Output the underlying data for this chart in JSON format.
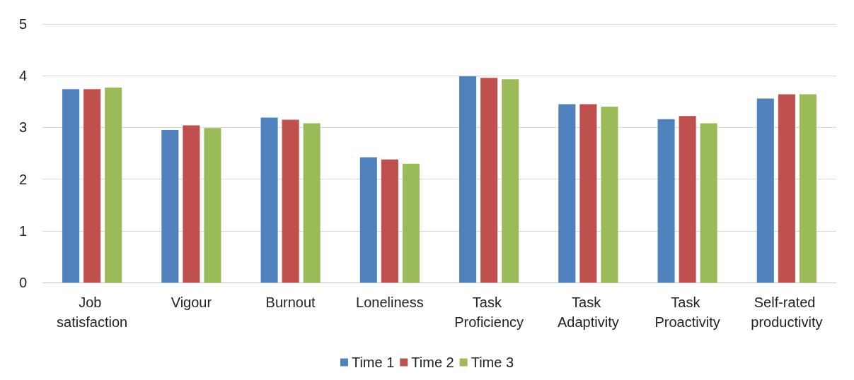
{
  "chart_data": {
    "type": "bar",
    "categories": [
      "Job satisfaction",
      "Vigour",
      "Burnout",
      "Loneliness",
      "Task Proficiency",
      "Task Adaptivity",
      "Task Proactivity",
      "Self-rated productivity"
    ],
    "series": [
      {
        "name": "Time 1",
        "color": "#4f81bd",
        "values": [
          3.74,
          2.95,
          3.19,
          2.42,
          3.99,
          3.45,
          3.16,
          3.56
        ]
      },
      {
        "name": "Time 2",
        "color": "#c0504d",
        "values": [
          3.74,
          3.04,
          3.15,
          2.38,
          3.96,
          3.45,
          3.22,
          3.64
        ]
      },
      {
        "name": "Time 3",
        "color": "#9bbb59",
        "values": [
          3.77,
          2.99,
          3.08,
          2.3,
          3.93,
          3.4,
          3.08,
          3.64
        ]
      }
    ],
    "ylim": [
      0,
      5
    ],
    "yticks": [
      0,
      1,
      2,
      3,
      4,
      5
    ],
    "grid": "y",
    "legend": "bottom"
  }
}
